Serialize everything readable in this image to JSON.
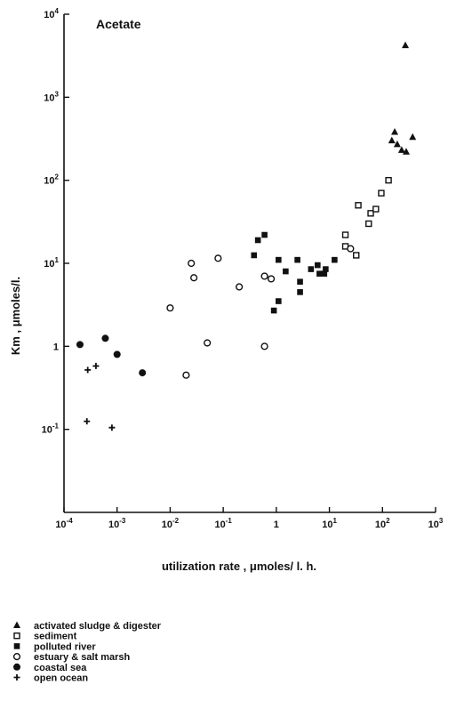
{
  "chart_data": {
    "type": "scatter",
    "title": "Acetate",
    "xlabel": "utilization rate , μmoles/ l. h.",
    "ylabel": "Km , μmoles/l.",
    "x_scale": "log",
    "y_scale": "log",
    "xlim": [
      0.0001,
      1000
    ],
    "ylim": [
      0.01,
      10000
    ],
    "x_ticks": [
      {
        "value": 0.0001,
        "base": "10",
        "exp": "-4"
      },
      {
        "value": 0.001,
        "base": "10",
        "exp": "-3"
      },
      {
        "value": 0.01,
        "base": "10",
        "exp": "-2"
      },
      {
        "value": 0.1,
        "base": "10",
        "exp": "-1"
      },
      {
        "value": 1,
        "base": "1",
        "exp": ""
      },
      {
        "value": 10,
        "base": "10",
        "exp": "1"
      },
      {
        "value": 100,
        "base": "10",
        "exp": "2"
      },
      {
        "value": 1000,
        "base": "10",
        "exp": "3"
      }
    ],
    "y_ticks": [
      {
        "value": 0.1,
        "base": "10",
        "exp": "-1"
      },
      {
        "value": 1,
        "base": "1",
        "exp": ""
      },
      {
        "value": 10,
        "base": "10",
        "exp": "1"
      },
      {
        "value": 100,
        "base": "10",
        "exp": "2"
      },
      {
        "value": 1000,
        "base": "10",
        "exp": "3"
      },
      {
        "value": 10000,
        "base": "10",
        "exp": "4"
      }
    ],
    "grid": false,
    "legend_position": "bottom-left",
    "series": [
      {
        "name": "activated sludge & digester",
        "marker": "triangle-filled",
        "points": [
          [
            270,
            4200
          ],
          [
            170,
            380
          ],
          [
            150,
            300
          ],
          [
            190,
            270
          ],
          [
            230,
            230
          ],
          [
            280,
            220
          ],
          [
            370,
            330
          ]
        ]
      },
      {
        "name": "sediment",
        "marker": "square-open",
        "points": [
          [
            35,
            50
          ],
          [
            130,
            100
          ],
          [
            95,
            70
          ],
          [
            60,
            40
          ],
          [
            75,
            45
          ],
          [
            20,
            22
          ],
          [
            20,
            16
          ],
          [
            55,
            30
          ],
          [
            32,
            12.5
          ]
        ]
      },
      {
        "name": "polluted river",
        "marker": "square-filled",
        "points": [
          [
            0.45,
            19
          ],
          [
            0.6,
            22
          ],
          [
            0.38,
            12.5
          ],
          [
            1.1,
            11
          ],
          [
            1.5,
            8
          ],
          [
            2.5,
            11
          ],
          [
            2.8,
            6
          ],
          [
            2.8,
            4.5
          ],
          [
            4.5,
            8.5
          ],
          [
            6,
            9.5
          ],
          [
            6.5,
            7.5
          ],
          [
            8,
            7.5
          ],
          [
            8.5,
            8.5
          ],
          [
            12.5,
            11
          ],
          [
            0.9,
            2.7
          ],
          [
            1.1,
            3.5
          ]
        ]
      },
      {
        "name": "estuary & salt marsh",
        "marker": "circle-open",
        "points": [
          [
            0.01,
            2.9
          ],
          [
            0.025,
            10
          ],
          [
            0.028,
            6.7
          ],
          [
            0.08,
            11.5
          ],
          [
            0.2,
            5.2
          ],
          [
            0.05,
            1.1
          ],
          [
            0.02,
            0.45
          ],
          [
            0.6,
            7
          ],
          [
            0.8,
            6.5
          ],
          [
            0.6,
            1
          ],
          [
            25,
            15
          ]
        ]
      },
      {
        "name": "coastal sea",
        "marker": "circle-filled",
        "points": [
          [
            0.0002,
            1.05
          ],
          [
            0.0006,
            1.25
          ],
          [
            0.001,
            0.8
          ],
          [
            0.003,
            0.48
          ]
        ]
      },
      {
        "name": "open ocean",
        "marker": "plus",
        "points": [
          [
            0.00028,
            0.52
          ],
          [
            0.0004,
            0.58
          ],
          [
            0.00027,
            0.125
          ],
          [
            0.0008,
            0.105
          ]
        ]
      }
    ]
  }
}
